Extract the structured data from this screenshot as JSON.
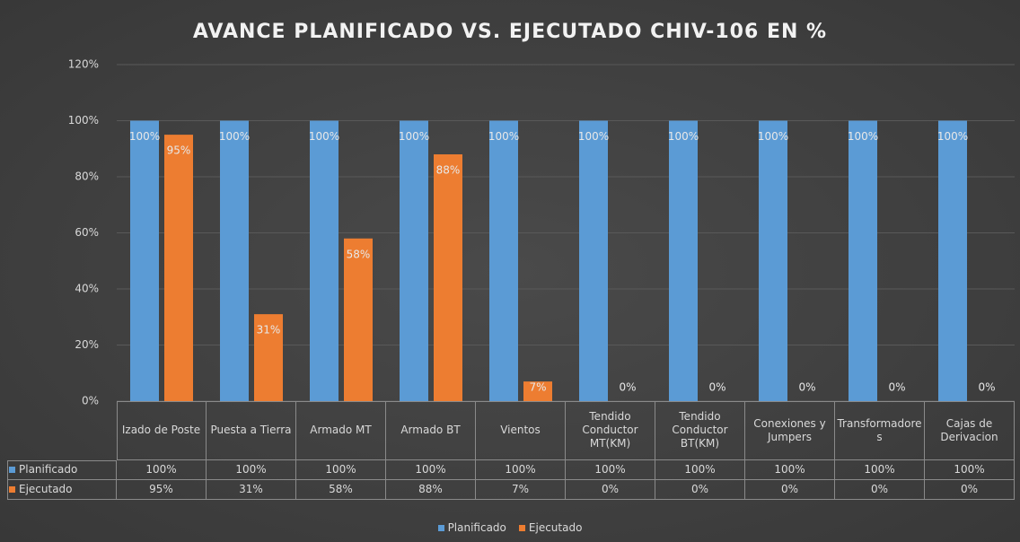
{
  "chart_data": {
    "type": "bar",
    "title": "AVANCE PLANIFICADO VS. EJECUTADO CHIV-106 EN %",
    "categories": [
      "Izado de Poste",
      "Puesta a Tierra",
      "Armado MT",
      "Armado BT",
      "Vientos",
      "Tendido Conductor MT(KM)",
      "Tendido Conductor BT(KM)",
      "Conexiones y Jumpers",
      "Transformadores",
      "Cajas de Derivacion"
    ],
    "series": [
      {
        "name": "Planificado",
        "color": "#5b9bd5",
        "values": [
          100,
          100,
          100,
          100,
          100,
          100,
          100,
          100,
          100,
          100
        ],
        "value_labels": [
          "100%",
          "100%",
          "100%",
          "100%",
          "100%",
          "100%",
          "100%",
          "100%",
          "100%",
          "100%"
        ]
      },
      {
        "name": "Ejecutado",
        "color": "#ed7d31",
        "values": [
          95,
          31,
          58,
          88,
          7,
          0,
          0,
          0,
          0,
          0
        ],
        "value_labels": [
          "95%",
          "31%",
          "58%",
          "88%",
          "7%",
          "0%",
          "0%",
          "0%",
          "0%",
          "0%"
        ]
      }
    ],
    "ylim": [
      0,
      120
    ],
    "yticks": [
      {
        "value": 0,
        "label": "0%"
      },
      {
        "value": 20,
        "label": "20%"
      },
      {
        "value": 40,
        "label": "40%"
      },
      {
        "value": 60,
        "label": "60%"
      },
      {
        "value": 80,
        "label": "80%"
      },
      {
        "value": 100,
        "label": "100%"
      },
      {
        "value": 120,
        "label": "120%"
      }
    ],
    "grid": true,
    "legend": "bottom"
  }
}
